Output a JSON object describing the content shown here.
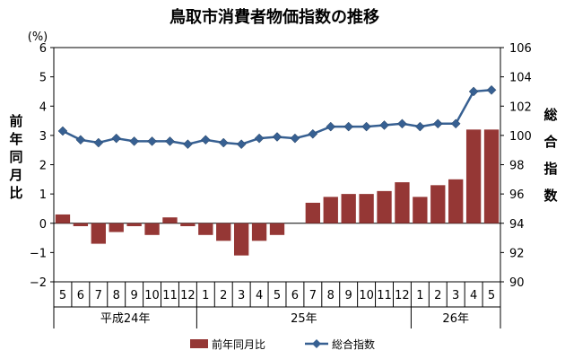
{
  "chart_data": {
    "type": "bar+line",
    "title": "鳥取市消費者物価指数の推移",
    "y_unit": "(%)",
    "y_left_label": "前年同月比",
    "y_right_label": "総合指数",
    "y_left_range": [
      -2,
      6
    ],
    "y_left_ticks": [
      "6",
      "5",
      "4",
      "3",
      "2",
      "1",
      "0",
      "−1",
      "−2"
    ],
    "y_right_range": [
      90,
      106
    ],
    "y_right_ticks": [
      "106",
      "104",
      "102",
      "100",
      "98",
      "96",
      "94",
      "92",
      "90"
    ],
    "categories": [
      "5",
      "6",
      "7",
      "8",
      "9",
      "10",
      "11",
      "12",
      "1",
      "2",
      "3",
      "4",
      "5",
      "6",
      "7",
      "8",
      "9",
      "10",
      "11",
      "12",
      "1",
      "2",
      "3",
      "4",
      "5"
    ],
    "groups": [
      {
        "label": "平成24年",
        "start": 0,
        "end": 7
      },
      {
        "label": "25年",
        "start": 8,
        "end": 19
      },
      {
        "label": "26年",
        "start": 20,
        "end": 24
      }
    ],
    "series": [
      {
        "name": "前年同月比",
        "type": "bar",
        "axis": "left",
        "color": "#953735",
        "values": [
          0.3,
          -0.1,
          -0.7,
          -0.3,
          -0.1,
          -0.4,
          0.2,
          -0.1,
          -0.4,
          -0.6,
          -1.1,
          -0.6,
          -0.4,
          0.0,
          0.7,
          0.9,
          1.0,
          1.0,
          1.1,
          1.4,
          0.9,
          1.3,
          1.5,
          3.2,
          3.2
        ]
      },
      {
        "name": "総合指数",
        "type": "line",
        "axis": "right",
        "color": "#376092",
        "values": [
          100.3,
          99.7,
          99.5,
          99.8,
          99.6,
          99.6,
          99.6,
          99.4,
          99.7,
          99.5,
          99.4,
          99.8,
          99.9,
          99.8,
          100.1,
          100.6,
          100.6,
          100.6,
          100.7,
          100.8,
          100.6,
          100.8,
          100.8,
          103.0,
          103.1
        ]
      }
    ],
    "legend_position": "bottom",
    "grid": false
  }
}
